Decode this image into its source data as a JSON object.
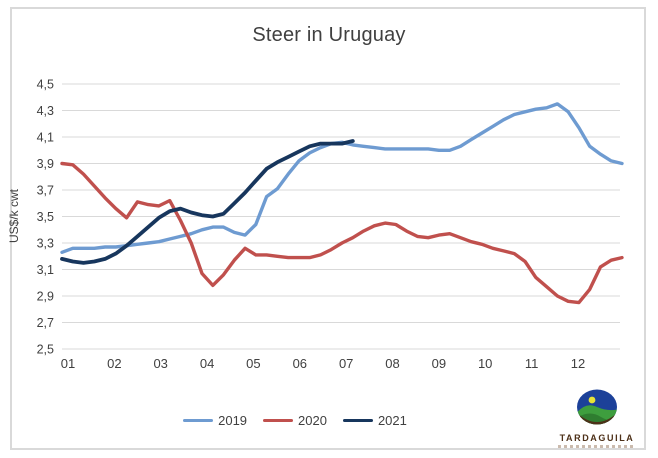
{
  "window": {
    "background": "#ffffff",
    "frame_border_color": "#d9d9d9"
  },
  "chart_data": {
    "type": "line",
    "title": "Steer in Uruguay",
    "xlabel": "",
    "ylabel": "US$/k cwt",
    "ylim": [
      2.5,
      4.5
    ],
    "y_tick_labels": [
      "4,5",
      "4,3",
      "4,1",
      "3,9",
      "3,7",
      "3,5",
      "3,3",
      "3,1",
      "2,9",
      "2,7",
      "2,5"
    ],
    "y_tick_values": [
      4.5,
      4.3,
      4.1,
      3.9,
      3.7,
      3.5,
      3.3,
      3.1,
      2.9,
      2.7,
      2.5
    ],
    "x_tick_labels": [
      "01",
      "02",
      "03",
      "04",
      "05",
      "06",
      "07",
      "08",
      "09",
      "10",
      "11",
      "12"
    ],
    "decimal_separator": ",",
    "grid": true,
    "gridline_color": "#d9d9d9",
    "tick_label_color": "#404040",
    "legend_position": "bottom-center",
    "weeks_per_year": 53,
    "series": [
      {
        "name": "2019",
        "color": "#6E9BD1",
        "line_width": 3.4,
        "weekly_values": [
          3.23,
          3.26,
          3.26,
          3.26,
          3.27,
          3.27,
          3.28,
          3.29,
          3.3,
          3.31,
          3.33,
          3.35,
          3.37,
          3.4,
          3.42,
          3.42,
          3.38,
          3.36,
          3.44,
          3.65,
          3.71,
          3.82,
          3.92,
          3.98,
          4.02,
          4.05,
          4.06,
          4.04,
          4.03,
          4.02,
          4.01,
          4.01,
          4.01,
          4.01,
          4.01,
          4.0,
          4.0,
          4.03,
          4.08,
          4.13,
          4.18,
          4.23,
          4.27,
          4.29,
          4.31,
          4.32,
          4.35,
          4.29,
          4.17,
          4.03,
          3.97,
          3.92,
          3.9
        ]
      },
      {
        "name": "2020",
        "color": "#C0504D",
        "line_width": 3.4,
        "weekly_values": [
          3.9,
          3.89,
          3.82,
          3.73,
          3.64,
          3.56,
          3.49,
          3.61,
          3.59,
          3.58,
          3.62,
          3.47,
          3.3,
          3.07,
          2.98,
          3.06,
          3.17,
          3.26,
          3.21,
          3.21,
          3.2,
          3.19,
          3.19,
          3.19,
          3.21,
          3.25,
          3.3,
          3.34,
          3.39,
          3.43,
          3.45,
          3.44,
          3.39,
          3.35,
          3.34,
          3.36,
          3.37,
          3.34,
          3.31,
          3.29,
          3.26,
          3.24,
          3.22,
          3.16,
          3.04,
          2.97,
          2.9,
          2.86,
          2.85,
          2.95,
          3.12,
          3.17,
          3.19
        ]
      },
      {
        "name": "2021",
        "color": "#17365D",
        "line_width": 3.8,
        "weekly_values": [
          3.18,
          3.16,
          3.15,
          3.16,
          3.18,
          3.22,
          3.28,
          3.35,
          3.42,
          3.49,
          3.54,
          3.56,
          3.53,
          3.51,
          3.5,
          3.52,
          3.6,
          3.68,
          3.77,
          3.86,
          3.91,
          3.95,
          3.99,
          4.03,
          4.05,
          4.05,
          4.05,
          4.07
        ]
      }
    ]
  },
  "logo": {
    "name": "TARDAGUILA"
  }
}
